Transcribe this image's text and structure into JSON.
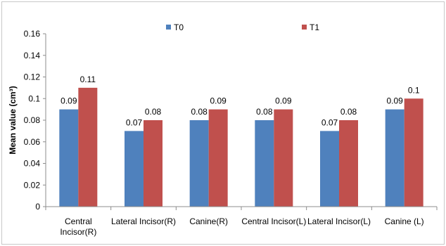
{
  "chart_data": {
    "type": "bar",
    "title": "",
    "xlabel": "",
    "ylabel": "Mean value (cm³)",
    "ylim": [
      0,
      0.16
    ],
    "yticks": [
      "0",
      "0.02",
      "0.04",
      "0.06",
      "0.08",
      "0.1",
      "0.12",
      "0.14",
      "0.16"
    ],
    "categories": [
      [
        "Central",
        "Incisor(R)"
      ],
      [
        "Lateral Incisor(R)"
      ],
      [
        "Canine(R)"
      ],
      [
        "Central Incisor(L)"
      ],
      [
        "Lateral Incisor(L)"
      ],
      [
        "Canine (L)"
      ]
    ],
    "series": [
      {
        "name": "T0",
        "color": "#4f81bd",
        "values": [
          0.09,
          0.07,
          0.08,
          0.08,
          0.07,
          0.09
        ],
        "labels": [
          "0.09",
          "0.07",
          "0.08",
          "0.08",
          "0.07",
          "0.09"
        ]
      },
      {
        "name": "T1",
        "color": "#c0504d",
        "values": [
          0.11,
          0.08,
          0.09,
          0.09,
          0.08,
          0.1
        ],
        "labels": [
          "0.11",
          "0.08",
          "0.09",
          "0.09",
          "0.08",
          "0.1"
        ]
      }
    ],
    "grid": false,
    "legend": "top"
  }
}
